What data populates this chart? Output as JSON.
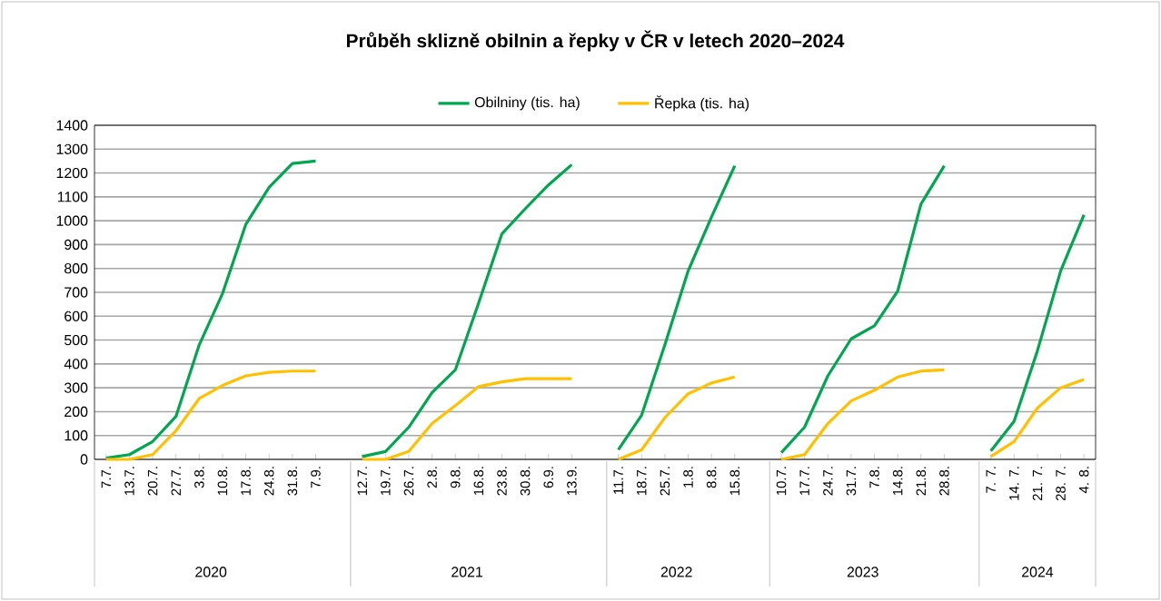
{
  "chart_data": {
    "type": "line",
    "title": "Průběh sklizně obilnin a řepky v ČR v letech 2020–2024",
    "categories": [
      "7.7.",
      "13.7.",
      "20.7.",
      "27.7.",
      "3.8.",
      "10.8.",
      "17.8.",
      "24.8.",
      "31.8.",
      "7.9.",
      null,
      "12.7.",
      "19.7.",
      "26.7.",
      "2.8.",
      "9.8.",
      "16.8.",
      "23.8.",
      "30.8.",
      "6.9.",
      "13.9.",
      null,
      "11.7.",
      "18.7.",
      "25.7.",
      "1.8.",
      "8.8.",
      "15.8.",
      null,
      "10.7.",
      "17.7.",
      "24.7.",
      "31.7.",
      "7.8.",
      "14.8.",
      "21.8.",
      "28.8.",
      null,
      "7. 7.",
      "14. 7.",
      "21. 7.",
      "28. 7.",
      "4. 8."
    ],
    "series": [
      {
        "name": "Obilniny (tis. ha)",
        "color": "#00a650",
        "values": [
          5,
          20,
          75,
          180,
          480,
          695,
          985,
          1140,
          1240,
          1250,
          null,
          12,
          33,
          135,
          280,
          375,
          655,
          945,
          1050,
          1150,
          1235,
          null,
          40,
          185,
          480,
          790,
          1015,
          1230,
          null,
          28,
          135,
          350,
          505,
          560,
          705,
          1070,
          1230,
          null,
          35,
          160,
          455,
          790,
          1025
        ]
      },
      {
        "name": "Řepka (tis. ha)",
        "color": "#ffc000",
        "values": [
          0,
          0,
          20,
          120,
          255,
          310,
          350,
          365,
          370,
          370,
          null,
          0,
          0,
          33,
          150,
          225,
          305,
          325,
          338,
          338,
          338,
          null,
          0,
          40,
          175,
          275,
          320,
          345,
          null,
          0,
          20,
          150,
          245,
          290,
          345,
          370,
          375,
          null,
          12,
          75,
          215,
          300,
          335
        ]
      }
    ],
    "ylim": [
      0,
      1400
    ],
    "yticks": [
      0,
      100,
      200,
      300,
      400,
      500,
      600,
      700,
      800,
      900,
      1000,
      1100,
      1200,
      1300,
      1400
    ],
    "grid": "y",
    "legend": "top",
    "line_style": "solid",
    "marker": "none",
    "annotations": [
      "2020",
      "2021",
      "2022",
      "2023",
      "2024"
    ]
  }
}
